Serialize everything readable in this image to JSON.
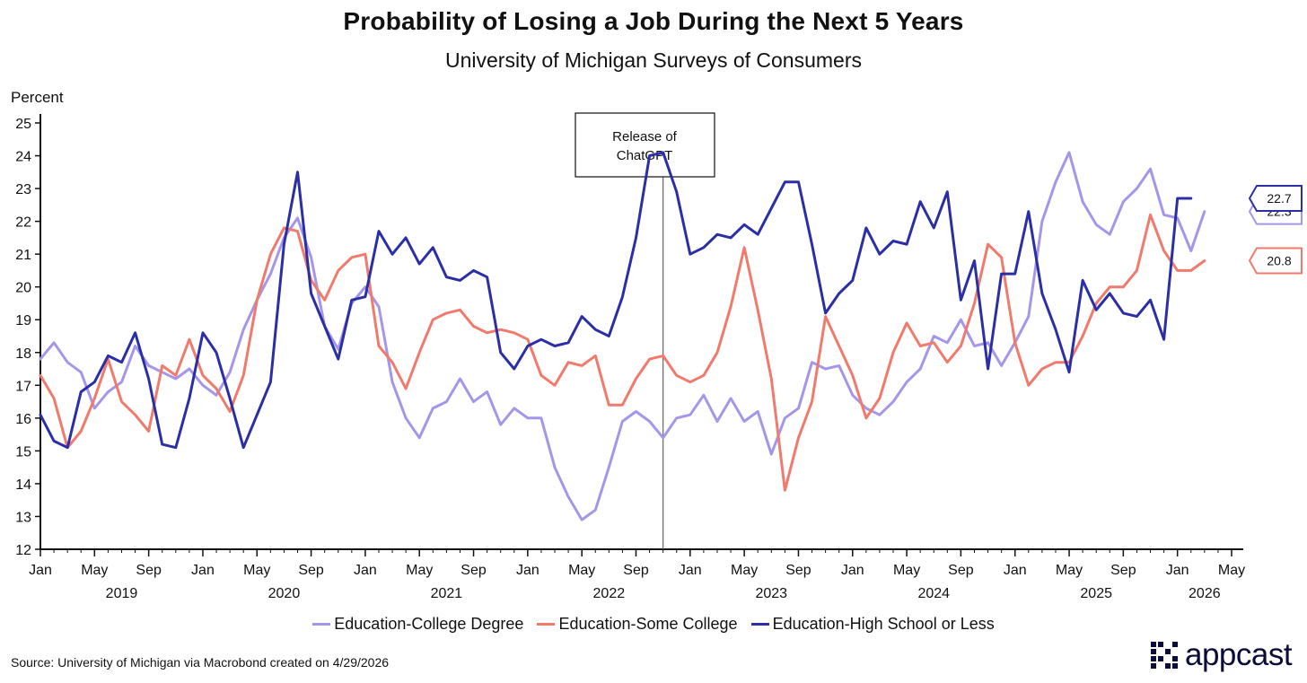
{
  "chart_data": {
    "type": "line",
    "title": "Probability of Losing a Job During the Next 5 Years",
    "subtitle": "University of Michigan Surveys of Consumers",
    "ylabel": "Percent",
    "ylim": [
      12,
      25
    ],
    "yticks": [
      12,
      13,
      14,
      15,
      16,
      17,
      18,
      19,
      20,
      21,
      22,
      23,
      24,
      25
    ],
    "x_start": "Jan 2019",
    "xlim": [
      0,
      88
    ],
    "x_tick_labels": [
      {
        "m": 0,
        "label": "Jan"
      },
      {
        "m": 4,
        "label": "May"
      },
      {
        "m": 8,
        "label": "Sep"
      },
      {
        "m": 12,
        "label": "Jan"
      },
      {
        "m": 16,
        "label": "May"
      },
      {
        "m": 20,
        "label": "Sep"
      },
      {
        "m": 24,
        "label": "Jan"
      },
      {
        "m": 28,
        "label": "May"
      },
      {
        "m": 32,
        "label": "Sep"
      },
      {
        "m": 36,
        "label": "Jan"
      },
      {
        "m": 40,
        "label": "May"
      },
      {
        "m": 44,
        "label": "Sep"
      },
      {
        "m": 48,
        "label": "Jan"
      },
      {
        "m": 52,
        "label": "May"
      },
      {
        "m": 56,
        "label": "Sep"
      },
      {
        "m": 60,
        "label": "Jan"
      },
      {
        "m": 64,
        "label": "May"
      },
      {
        "m": 68,
        "label": "Sep"
      },
      {
        "m": 72,
        "label": "Jan"
      },
      {
        "m": 76,
        "label": "May"
      },
      {
        "m": 80,
        "label": "Sep"
      },
      {
        "m": 84,
        "label": "Jan"
      },
      {
        "m": 88,
        "label": "May"
      }
    ],
    "year_labels": [
      {
        "m": 6,
        "label": "2019"
      },
      {
        "m": 18,
        "label": "2020"
      },
      {
        "m": 30,
        "label": "2021"
      },
      {
        "m": 42,
        "label": "2022"
      },
      {
        "m": 54,
        "label": "2023"
      },
      {
        "m": 66,
        "label": "2024"
      },
      {
        "m": 78,
        "label": "2025"
      },
      {
        "m": 86,
        "label": "2026"
      }
    ],
    "annotation": {
      "text_line1": "Release of",
      "text_line2": "ChatGPT",
      "month_index": 46
    },
    "series": [
      {
        "name": "Education-College Degree",
        "color": "#a596ea",
        "end_label": "22.3",
        "values": [
          17.8,
          18.3,
          17.7,
          17.4,
          16.3,
          16.8,
          17.1,
          18.2,
          17.6,
          17.4,
          17.2,
          17.5,
          17.0,
          16.7,
          17.4,
          18.7,
          19.6,
          20.4,
          21.5,
          22.1,
          20.9,
          18.8,
          18.1,
          19.5,
          20.0,
          19.4,
          17.1,
          16.0,
          15.4,
          16.3,
          16.5,
          17.2,
          16.5,
          16.8,
          15.8,
          16.3,
          16.0,
          16.0,
          14.5,
          13.6,
          12.9,
          13.2,
          14.5,
          15.9,
          16.2,
          15.9,
          15.4,
          16.0,
          16.1,
          16.7,
          15.9,
          16.6,
          15.9,
          16.2,
          14.9,
          16.0,
          16.3,
          17.7,
          17.5,
          17.6,
          16.7,
          16.3,
          16.1,
          16.5,
          17.1,
          17.5,
          18.5,
          18.3,
          19.0,
          18.2,
          18.3,
          17.6,
          18.3,
          19.1,
          22.0,
          23.2,
          24.1,
          22.6,
          21.9,
          21.6,
          22.6,
          23.0,
          23.6,
          22.2,
          22.1,
          21.1,
          22.3
        ]
      },
      {
        "name": "Education-Some College",
        "color": "#f07a6c",
        "end_label": "20.8",
        "values": [
          17.3,
          16.6,
          15.1,
          15.6,
          16.6,
          17.8,
          16.5,
          16.1,
          15.6,
          17.6,
          17.3,
          18.4,
          17.3,
          16.9,
          16.2,
          17.3,
          19.6,
          21.0,
          21.8,
          21.7,
          20.2,
          19.6,
          20.5,
          20.9,
          21.0,
          18.2,
          17.7,
          16.9,
          18.0,
          19.0,
          19.2,
          19.3,
          18.8,
          18.6,
          18.7,
          18.6,
          18.4,
          17.3,
          17.0,
          17.7,
          17.6,
          17.9,
          16.4,
          16.4,
          17.2,
          17.8,
          17.9,
          17.3,
          17.1,
          17.3,
          18.0,
          19.4,
          21.2,
          19.3,
          17.2,
          13.8,
          15.4,
          16.5,
          19.1,
          18.2,
          17.3,
          16.0,
          16.6,
          18.0,
          18.9,
          18.2,
          18.3,
          17.7,
          18.2,
          19.5,
          21.3,
          20.9,
          18.3,
          17.0,
          17.5,
          17.7,
          17.7,
          18.5,
          19.5,
          20.0,
          20.0,
          20.5,
          22.2,
          21.1,
          20.5,
          20.5,
          20.8
        ]
      },
      {
        "name": "Education-High School or Less",
        "color": "#2b2fa6",
        "end_label": "22.7",
        "values": [
          16.1,
          15.3,
          15.1,
          16.8,
          17.1,
          17.9,
          17.7,
          18.6,
          17.2,
          15.2,
          15.1,
          16.6,
          18.6,
          18.0,
          16.6,
          15.1,
          16.1,
          17.1,
          21.3,
          23.5,
          19.8,
          18.8,
          17.8,
          19.6,
          19.7,
          21.7,
          21.0,
          21.5,
          20.7,
          21.2,
          20.3,
          20.2,
          20.5,
          20.3,
          18.0,
          17.5,
          18.2,
          18.4,
          18.2,
          18.3,
          19.1,
          18.7,
          18.5,
          19.7,
          21.5,
          24.0,
          24.1,
          22.9,
          21.0,
          21.2,
          21.6,
          21.5,
          21.9,
          21.6,
          22.4,
          23.2,
          23.2,
          21.3,
          19.2,
          19.8,
          20.2,
          21.8,
          21.0,
          21.4,
          21.3,
          22.6,
          21.8,
          22.9,
          19.6,
          20.8,
          17.5,
          20.4,
          20.4,
          22.3,
          19.8,
          18.7,
          17.4,
          20.2,
          19.3,
          19.8,
          19.2,
          19.1,
          19.6,
          18.4,
          22.7,
          22.7
        ]
      }
    ]
  },
  "source": "Source: University of Michigan via Macrobond created on 4/29/2026",
  "brand": "appcast"
}
